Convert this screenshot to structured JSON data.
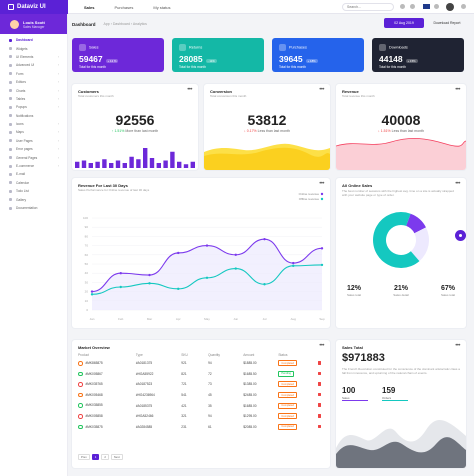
{
  "brand": {
    "name": "Dataviz UI"
  },
  "nav": {
    "items": [
      "Sales",
      "Purchases",
      "My status"
    ]
  },
  "search": {
    "placeholder": "Search..."
  },
  "user": {
    "name": "Louis Scott",
    "role": "Sales Manager"
  },
  "sidebar": {
    "items": [
      {
        "label": "Dashboard",
        "active": true
      },
      {
        "label": "Widgets"
      },
      {
        "label": "UI Elements",
        "chevron": true
      },
      {
        "label": "Advanced UI",
        "chevron": true
      },
      {
        "label": "Form",
        "chevron": true
      },
      {
        "label": "Editors",
        "chevron": true
      },
      {
        "label": "Charts",
        "chevron": true
      },
      {
        "label": "Tables",
        "chevron": true
      },
      {
        "label": "Popups",
        "chevron": true
      },
      {
        "label": "Notifications"
      },
      {
        "label": "Icons",
        "chevron": true
      },
      {
        "label": "Maps",
        "chevron": true
      },
      {
        "label": "User Pages",
        "chevron": true
      },
      {
        "label": "Error pages",
        "chevron": true
      },
      {
        "label": "General Pages",
        "chevron": true
      },
      {
        "label": "E-commerce",
        "chevron": true
      },
      {
        "label": "E-mail"
      },
      {
        "label": "Calendar"
      },
      {
        "label": "Todo List"
      },
      {
        "label": "Gallery"
      },
      {
        "label": "Documentation"
      }
    ]
  },
  "header": {
    "title": "Dashboard",
    "breadcrumb": "App  ›  Dashboard  ›  Analytics",
    "date": "02 Aug 2019",
    "download": "Download Report"
  },
  "stats": [
    {
      "label": "Sales",
      "value": "59467",
      "badge": "+ 12 %",
      "sub": "Total for this month",
      "color": "#6d28d9"
    },
    {
      "label": "Returns",
      "value": "28085",
      "badge": "- 11%",
      "sub": "Total for this month",
      "color": "#14b8a6"
    },
    {
      "label": "Purchases",
      "value": "39645",
      "badge": "+ 18%",
      "sub": "Total for this month",
      "color": "#2563eb"
    },
    {
      "label": "Downloads",
      "value": "44148",
      "badge": "+ 15%",
      "sub": "Total for this month",
      "color": "#1f2333"
    }
  ],
  "customers": {
    "title": "Customers",
    "subtitle": "Total customers this month",
    "value": "92556",
    "delta": "1.51%",
    "delta_text": "More than last month",
    "bars": [
      5,
      6,
      4,
      5,
      7,
      4,
      6,
      4,
      9,
      7,
      16,
      8,
      4,
      6,
      13,
      5,
      3,
      5
    ]
  },
  "conversion": {
    "title": "Conversion",
    "subtitle": "Total conversion this month",
    "value": "53812",
    "delta": "0.17%",
    "delta_text": "Less than last month"
  },
  "revenue": {
    "title": "Revenue",
    "subtitle": "Total revenue this month",
    "value": "40008",
    "delta": "1.51%",
    "delta_text": "Less than last month"
  },
  "revenue_chart": {
    "title": "Revenue For Last 30 Days",
    "subtitle": "Sales Performance for Online revenue of last 30 days",
    "legend": [
      "Online revenue",
      "Offline revenue"
    ],
    "chart_data": {
      "type": "line",
      "categories": [
        "Jan",
        "Feb",
        "Mar",
        "Apr",
        "May",
        "Jun",
        "Jul",
        "Aug",
        "Sep"
      ],
      "series": [
        {
          "name": "Online revenue",
          "values": [
            20,
            40,
            38,
            62,
            70,
            60,
            77,
            51,
            67
          ],
          "color": "#7c3aed"
        },
        {
          "name": "Offline revenue",
          "values": [
            17,
            25,
            29,
            23,
            35,
            45,
            28,
            48,
            49
          ],
          "color": "#14c8c0"
        }
      ],
      "y_ticks": [
        "100",
        "90",
        "80",
        "70",
        "60",
        "50",
        "40",
        "30",
        "20",
        "10",
        "0"
      ],
      "ylim": [
        0,
        100
      ]
    }
  },
  "all_sales": {
    "title": "All Online Sales",
    "subtitle": "The best number of sessions with the highest avg. time on a site is actually strapped with your website page or type of order.",
    "chart_data": {
      "type": "pie",
      "labels": [
        "Sales total",
        "Sales detail",
        "Sales total"
      ],
      "values": [
        12,
        21,
        67
      ],
      "colors": [
        "#7c3aed",
        "#ede9fe",
        "#14c8c0"
      ]
    },
    "items": [
      {
        "value": "12%",
        "label": "Sales total"
      },
      {
        "value": "21%",
        "label": "Sales detail"
      },
      {
        "value": "67%",
        "label": "Sales total"
      }
    ]
  },
  "market": {
    "title": "Market Overview",
    "columns": [
      "Product",
      "Type",
      "SKU",
      "Quantity",
      "Amount",
      "Status"
    ],
    "rows": [
      {
        "product": "#MK865875",
        "type": "#A0181375",
        "sku": "921",
        "qty": "94",
        "amount": "$1885.00",
        "status": "Completed",
        "color": "#f97316"
      },
      {
        "product": "#MK005867",
        "type": "#HGA55922",
        "sku": "821",
        "qty": "72",
        "amount": "$1685.50",
        "status": "Pending",
        "color": "#22c55e"
      },
      {
        "product": "#MK035765",
        "type": "#A0187523",
        "sku": "721",
        "qty": "73",
        "amount": "$1385.00",
        "status": "Completed",
        "color": "#ef4444"
      },
      {
        "product": "#MK005468",
        "type": "#HG4236964",
        "sku": "541",
        "qty": "45",
        "amount": "$2485.00",
        "status": "Completed",
        "color": "#f97316"
      },
      {
        "product": "#MK035855",
        "type": "#A0185375",
        "sku": "421",
        "qty": "35",
        "amount": "$1685.00",
        "status": "Completed",
        "color": "#22c55e"
      },
      {
        "product": "#MK005858",
        "type": "#HGA52466",
        "sku": "321",
        "qty": "94",
        "amount": "$1295.00",
        "status": "Completed",
        "color": "#ef4444"
      },
      {
        "product": "#MK035875",
        "type": "#A0284585",
        "sku": "231",
        "qty": "61",
        "amount": "$2085.00",
        "status": "Completed",
        "color": "#22c55e"
      }
    ],
    "pager": [
      "Prev",
      "1",
      "2",
      "Next"
    ]
  },
  "sales_total": {
    "title": "Sales Total",
    "value": "$971883",
    "description": "The French Revolution constituted for the conscience of the dominant aristocratic class a fall from innocence, and upturning of the natural chain of events.",
    "stats": [
      {
        "value": "100",
        "label": "Sales"
      },
      {
        "value": "159",
        "label": "Orders"
      }
    ]
  }
}
